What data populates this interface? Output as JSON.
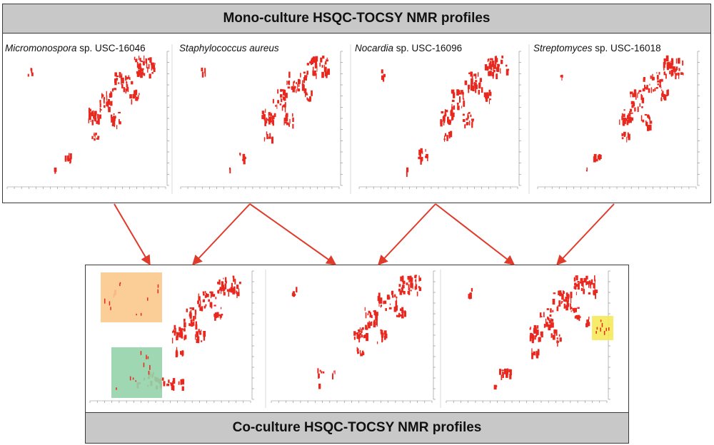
{
  "mono_header": {
    "title": "Mono-culture HSQC-TOCSY NMR profiles"
  },
  "co_header": {
    "title": "Co-culture HSQC-TOCSY NMR profiles"
  },
  "organisms": [
    {
      "genus": "Micromonospora",
      "rest": " sp. USC-16046"
    },
    {
      "genus": "Staphylococcus aureus",
      "rest": ""
    },
    {
      "genus": "Nocardia",
      "rest": " sp. USC-16096"
    },
    {
      "genus": "Streptomyces",
      "rest": " sp. USC-16018"
    }
  ],
  "co_panels": [
    {
      "sources": [
        0,
        1
      ],
      "highlights": [
        {
          "color": "#fbc98d"
        },
        {
          "color": "#93d3aa"
        }
      ]
    },
    {
      "sources": [
        1,
        2
      ],
      "highlights": []
    },
    {
      "sources": [
        2,
        3
      ],
      "highlights": [
        {
          "color": "#f5ea5a"
        }
      ]
    }
  ],
  "colors": {
    "peak": "#e8281e",
    "arrow": "#e03a2a",
    "frame": "#3a3a3a",
    "header_bg": "#c8c8c8"
  }
}
